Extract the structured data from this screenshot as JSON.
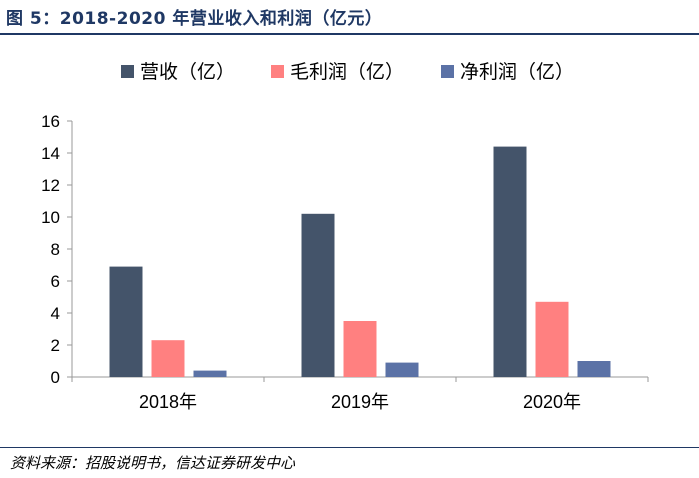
{
  "figure": {
    "title": "图 5：2018-2020 年营业收入和利润（亿元）",
    "source": "资料来源：招股说明书，信达证券研发中心"
  },
  "colors": {
    "title": "#1f3864",
    "series": [
      "#44546a",
      "#ff8080",
      "#5b72a6"
    ],
    "axis": "#999999"
  },
  "chart_data": {
    "type": "bar",
    "categories": [
      "2018年",
      "2019年",
      "2020年"
    ],
    "series": [
      {
        "name": "营收（亿）",
        "values": [
          6.9,
          10.2,
          14.4
        ]
      },
      {
        "name": "毛利润（亿）",
        "values": [
          2.3,
          3.5,
          4.7
        ]
      },
      {
        "name": "净利润（亿）",
        "values": [
          0.4,
          0.9,
          1.0
        ]
      }
    ],
    "ylim": [
      0,
      16
    ],
    "yticks": [
      0,
      2,
      4,
      6,
      8,
      10,
      12,
      14,
      16
    ],
    "grid": false,
    "legend_position": "top-center"
  }
}
